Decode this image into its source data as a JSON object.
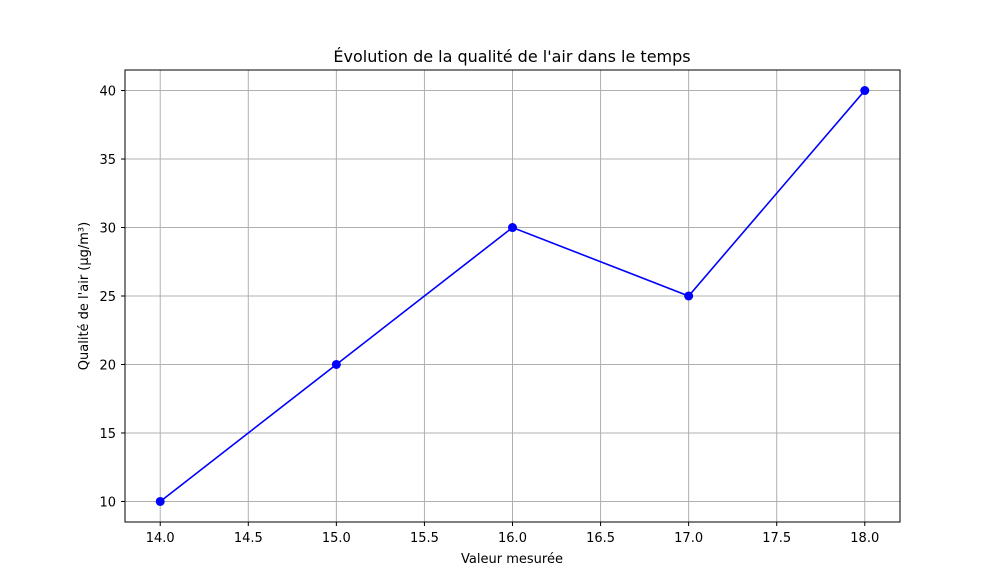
{
  "chart_data": {
    "type": "line",
    "title": "Évolution de la qualité de l'air dans le temps",
    "xlabel": "Valeur mesurée",
    "ylabel": "Qualité de l'air (µg/m³)",
    "xlim": [
      13.8,
      18.2
    ],
    "ylim": [
      8.5,
      41.5
    ],
    "x_ticks": [
      "14.0",
      "14.5",
      "15.0",
      "15.5",
      "16.0",
      "16.5",
      "17.0",
      "17.5",
      "18.0"
    ],
    "y_ticks": [
      "10",
      "15",
      "20",
      "25",
      "30",
      "35",
      "40"
    ],
    "grid": true,
    "series": [
      {
        "x": [
          14,
          15,
          16,
          17,
          18
        ],
        "values": [
          10,
          20,
          30,
          25,
          40
        ],
        "color": "#0000ff",
        "marker": "circle"
      }
    ]
  }
}
